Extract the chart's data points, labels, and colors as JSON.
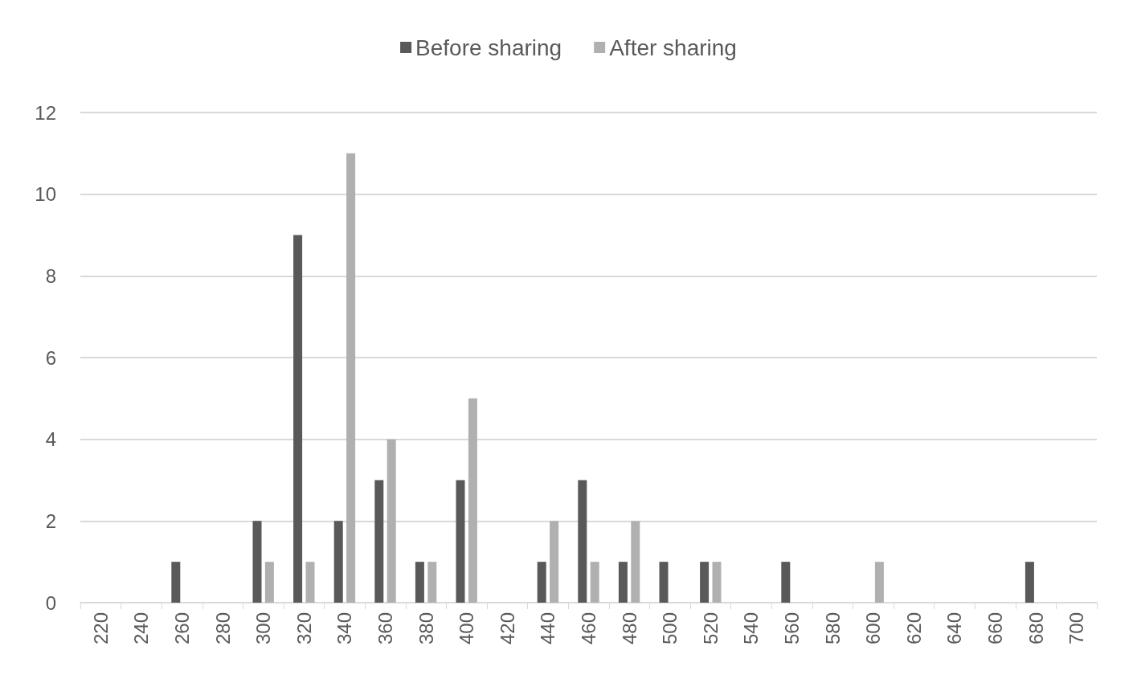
{
  "chart_data": {
    "type": "bar",
    "categories": [
      "220",
      "240",
      "260",
      "280",
      "300",
      "320",
      "340",
      "360",
      "380",
      "400",
      "420",
      "440",
      "460",
      "480",
      "500",
      "520",
      "540",
      "560",
      "580",
      "600",
      "620",
      "640",
      "660",
      "680",
      "700"
    ],
    "series": [
      {
        "name": "Before sharing",
        "color": "#595959",
        "values": [
          0,
          0,
          1,
          0,
          2,
          9,
          2,
          3,
          1,
          3,
          0,
          1,
          3,
          1,
          1,
          1,
          0,
          1,
          0,
          0,
          0,
          0,
          0,
          1,
          0
        ]
      },
      {
        "name": "After sharing",
        "color": "#b0b0b0",
        "values": [
          0,
          0,
          0,
          0,
          1,
          1,
          11,
          4,
          1,
          5,
          0,
          2,
          1,
          2,
          0,
          1,
          0,
          0,
          0,
          1,
          0,
          0,
          0,
          0,
          0
        ]
      }
    ],
    "ylim": [
      0,
      12
    ],
    "yticks": [
      0,
      2,
      4,
      6,
      8,
      10,
      12
    ],
    "grid": "y",
    "legend": "top"
  }
}
